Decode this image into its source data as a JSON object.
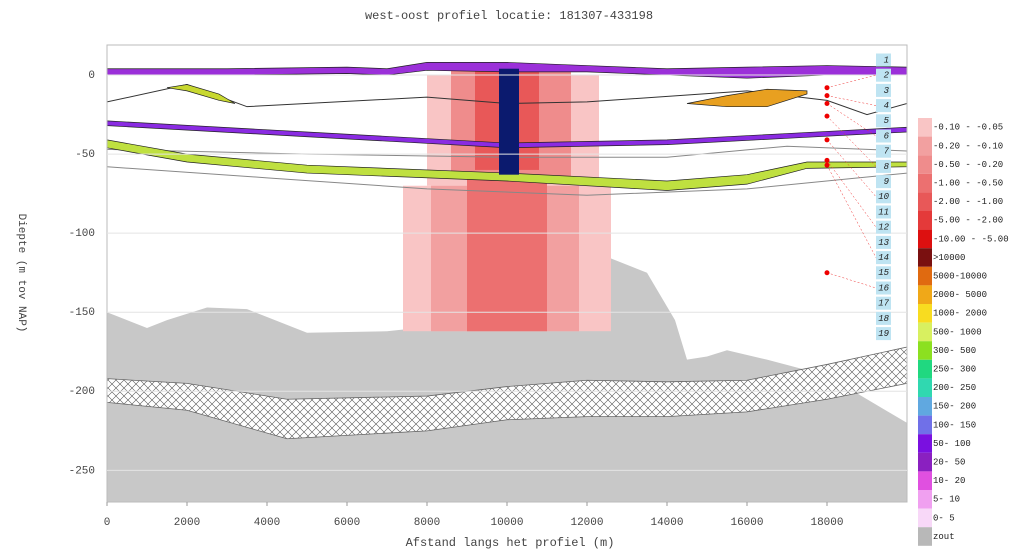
{
  "chart_data": {
    "type": "profile",
    "title": "west-oost profiel locatie: 181307-433198",
    "xlabel": "Afstand langs het profiel (m)",
    "ylabel": "Diepte (m tov NAP)",
    "xlim": [
      0,
      20000
    ],
    "ylim": [
      -270,
      19
    ],
    "xticks": [
      0,
      2000,
      4000,
      6000,
      8000,
      10000,
      12000,
      14000,
      16000,
      18000
    ],
    "yticks": [
      0,
      -50,
      -100,
      -150,
      -200,
      -250
    ],
    "grid": true,
    "base": {
      "color": "#c8c8c8",
      "x": [
        0,
        1000,
        1500,
        2500,
        3500,
        5000,
        7000,
        8500,
        9500,
        10500,
        11500,
        12500,
        13500,
        14200,
        14500,
        15000,
        15500,
        16500,
        18000,
        19000,
        20000
      ],
      "values": [
        -150,
        -160,
        -155,
        -147,
        -148,
        -163,
        -162,
        -158,
        -145,
        -125,
        -115,
        -115,
        -125,
        -155,
        -180,
        -178,
        -174,
        -180,
        -190,
        -205,
        -220
      ]
    },
    "hatched": {
      "x": [
        0,
        2000,
        4500,
        8000,
        10000,
        12000,
        14000,
        16000,
        18000,
        20000
      ],
      "top": [
        -192,
        -195,
        -205,
        -203,
        -197,
        -193,
        -194,
        -193,
        -183,
        -172
      ],
      "bottom": [
        -207,
        -212,
        -230,
        -225,
        -218,
        -216,
        -216,
        -213,
        -205,
        -195
      ]
    },
    "columns": [
      {
        "x0": 7400,
        "x1": 12600,
        "top": -70,
        "bottom": -162,
        "color": "#f9c5c5"
      },
      {
        "x0": 8000,
        "x1": 12300,
        "top": 0,
        "bottom": -70,
        "color": "#f9c5c5"
      },
      {
        "x0": 8100,
        "x1": 11800,
        "top": -70,
        "bottom": -162,
        "color": "#f2a0a0"
      },
      {
        "x0": 8600,
        "x1": 11600,
        "top": 4,
        "bottom": -65,
        "color": "#ef8c8c"
      },
      {
        "x0": 9000,
        "x1": 11000,
        "top": -65,
        "bottom": -162,
        "color": "#ec7070"
      },
      {
        "x0": 9200,
        "x1": 10800,
        "top": 4,
        "bottom": -60,
        "color": "#e85858"
      }
    ],
    "bands": [
      {
        "color": "#9b30d9",
        "x": [
          0,
          3000,
          6000,
          7000,
          8000,
          10000,
          12000,
          14000,
          16000,
          18000,
          20000
        ],
        "top": [
          4,
          4,
          5,
          4,
          8,
          8,
          6,
          4,
          5,
          6,
          5
        ],
        "bottom": [
          0,
          0,
          1,
          0,
          3,
          2,
          2,
          0,
          -2,
          0,
          0
        ]
      },
      {
        "color": "#c8d830",
        "x": [
          1500,
          2000,
          2800,
          3200
        ],
        "top": [
          -8,
          -6,
          -12,
          -18
        ],
        "bottom": [
          -8,
          -10,
          -16,
          -18
        ]
      },
      {
        "color": "#e8a020",
        "x": [
          14500,
          15500,
          16500,
          17500
        ],
        "top": [
          -18,
          -13,
          -9,
          -10
        ],
        "bottom": [
          -18,
          -20,
          -20,
          -12
        ]
      },
      {
        "color": "#8a2be2",
        "x": [
          0,
          5000,
          10000,
          14000,
          17000,
          20000
        ],
        "top": [
          -29,
          -36,
          -43,
          -41,
          -37,
          -33
        ],
        "bottom": [
          -32,
          -39,
          -46,
          -44,
          -40,
          -36
        ]
      },
      {
        "color": "#bfe040",
        "x": [
          0,
          2000,
          5000,
          10000,
          14000,
          16000,
          17500,
          20000
        ],
        "top": [
          -41,
          -50,
          -57,
          -62,
          -67,
          -63,
          -55,
          -55
        ],
        "bottom": [
          -46,
          -55,
          -62,
          -67,
          -73,
          -69,
          -59,
          -58
        ]
      }
    ],
    "lines": [
      {
        "color": "#333333",
        "x": [
          0,
          2000,
          3500,
          8000,
          10000,
          12000,
          16000,
          18000,
          19000,
          20000
        ],
        "values": [
          -17,
          -6,
          -20,
          -14,
          -18,
          -17,
          -10,
          -16,
          -25,
          -18
        ]
      },
      {
        "color": "#888888",
        "x": [
          0,
          5000,
          10000,
          14000,
          17000,
          20000
        ],
        "values": [
          -47,
          -50,
          -52,
          -52,
          -45,
          -48
        ]
      },
      {
        "color": "#888888",
        "x": [
          0,
          4000,
          8000,
          12000,
          16000,
          20000
        ],
        "values": [
          -58,
          -65,
          -72,
          -76,
          -72,
          -62
        ]
      }
    ],
    "well": {
      "x0": 9800,
      "x1": 10300,
      "top": 4,
      "bottom": -63,
      "color": "#0b1a6e"
    },
    "well_points": {
      "x": 18000,
      "depths": [
        -8,
        -13,
        -18,
        -26,
        -41,
        -54,
        -57,
        -125
      ]
    },
    "well_labels": [
      "1",
      "2",
      "3",
      "4",
      "5",
      "6",
      "7",
      "8",
      "9",
      "10",
      "11",
      "12",
      "13",
      "14",
      "15",
      "16",
      "17",
      "18",
      "19"
    ],
    "legend": {
      "labels": [
        "-0.10 - -0.05",
        "-0.20 - -0.10",
        "-0.50 - -0.20",
        "-1.00 - -0.50",
        "-2.00 - -1.00",
        "-5.00 - -2.00",
        "-10.00 - -5.00",
        ">10000",
        "5000-10000",
        "2000- 5000",
        "1000- 2000",
        "500- 1000",
        "300- 500",
        "250- 300",
        "200- 250",
        "150- 200",
        "100- 150",
        "50- 100",
        "20- 50",
        "10- 20",
        "5- 10",
        "0- 5",
        "zout"
      ],
      "colors": [
        "#f9c5c5",
        "#f2a0a0",
        "#ef8c8c",
        "#ec7070",
        "#e85858",
        "#e43a3a",
        "#dd1010",
        "#7a1010",
        "#e06a10",
        "#f0a818",
        "#f8dc20",
        "#d8f060",
        "#8ce020",
        "#20d880",
        "#30d8b0",
        "#60a8e0",
        "#7070e8",
        "#7a10e0",
        "#8a20c0",
        "#e050e0",
        "#f0a0f0",
        "#f8d8f8",
        "#b8b8b8"
      ]
    }
  }
}
